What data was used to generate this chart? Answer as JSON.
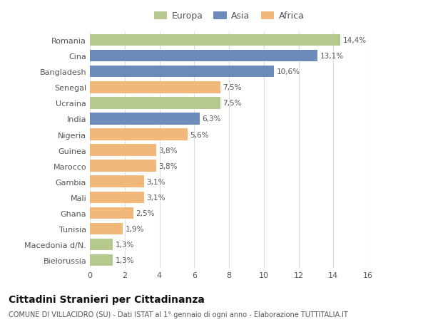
{
  "countries": [
    "Romania",
    "Cina",
    "Bangladesh",
    "Senegal",
    "Ucraina",
    "India",
    "Nigeria",
    "Guinea",
    "Marocco",
    "Gambia",
    "Mali",
    "Ghana",
    "Tunisia",
    "Macedonia d/N.",
    "Bielorussia"
  ],
  "values": [
    14.4,
    13.1,
    10.6,
    7.5,
    7.5,
    6.3,
    5.6,
    3.8,
    3.8,
    3.1,
    3.1,
    2.5,
    1.9,
    1.3,
    1.3
  ],
  "labels": [
    "14,4%",
    "13,1%",
    "10,6%",
    "7,5%",
    "7,5%",
    "6,3%",
    "5,6%",
    "3,8%",
    "3,8%",
    "3,1%",
    "3,1%",
    "2,5%",
    "1,9%",
    "1,3%",
    "1,3%"
  ],
  "continents": [
    "Europa",
    "Asia",
    "Asia",
    "Africa",
    "Europa",
    "Asia",
    "Africa",
    "Africa",
    "Africa",
    "Africa",
    "Africa",
    "Africa",
    "Africa",
    "Europa",
    "Europa"
  ],
  "colors": {
    "Europa": "#b5c98e",
    "Asia": "#6b8cba",
    "Africa": "#f0b87a"
  },
  "legend_order": [
    "Europa",
    "Asia",
    "Africa"
  ],
  "xlim": [
    0,
    16
  ],
  "xticks": [
    0,
    2,
    4,
    6,
    8,
    10,
    12,
    14,
    16
  ],
  "title": "Cittadini Stranieri per Cittadinanza",
  "subtitle": "COMUNE DI VILLACIDRO (SU) - Dati ISTAT al 1° gennaio di ogni anno - Elaborazione TUTTITALIA.IT",
  "bg_color": "#ffffff",
  "grid_color": "#dddddd",
  "bar_height": 0.75,
  "label_fontsize": 7.5,
  "ytick_fontsize": 8.0,
  "xtick_fontsize": 8.0,
  "title_fontsize": 10,
  "subtitle_fontsize": 7.0
}
